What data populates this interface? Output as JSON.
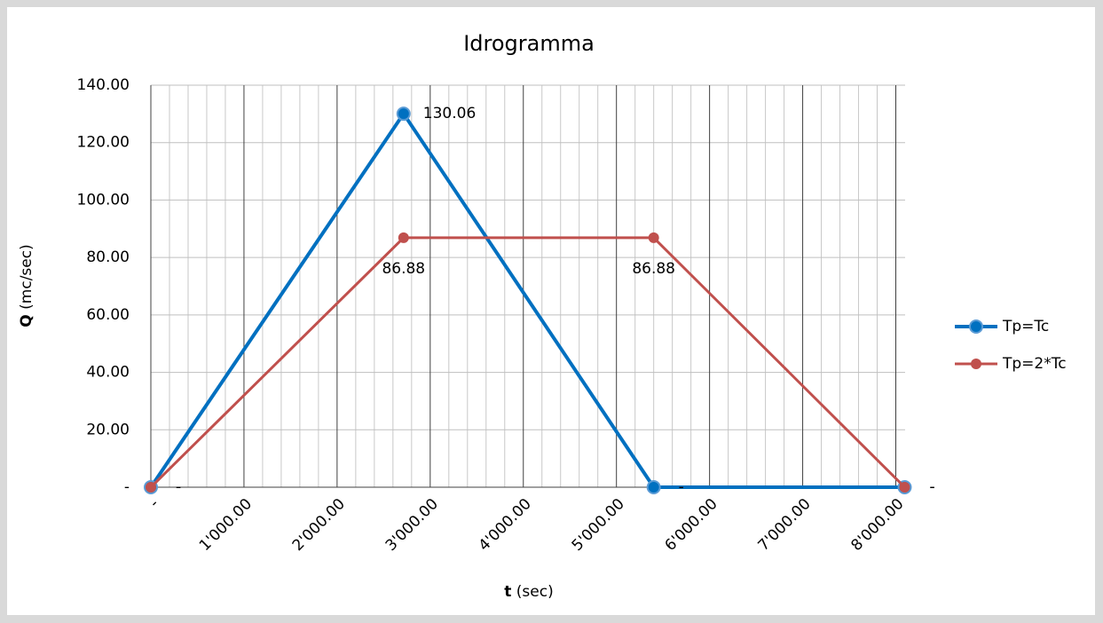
{
  "chart_data": {
    "type": "line",
    "title": "Idrogramma",
    "x_label": {
      "symbol": "t",
      "unit": "(sec)"
    },
    "y_label": {
      "symbol": "Q",
      "unit": "(mc/sec)"
    },
    "x": [
      0,
      2714,
      5400,
      8095
    ],
    "series": [
      {
        "name": "Tp=Tc",
        "color": "#0070c0",
        "values": [
          0,
          130.06,
          0,
          0
        ],
        "value_labels": [
          "-",
          "130.06",
          "-",
          "-"
        ]
      },
      {
        "name": "Tp=2*Tc",
        "color": "#c0504d",
        "values": [
          0,
          86.88,
          86.88,
          0
        ],
        "value_labels": [
          "-",
          "86.88",
          "86.88",
          "-"
        ]
      }
    ],
    "xlim": [
      0,
      8100
    ],
    "xticks": [
      {
        "value": 0,
        "label": "-"
      },
      {
        "value": 1000,
        "label": "1'000.00"
      },
      {
        "value": 2000,
        "label": "2'000.00"
      },
      {
        "value": 3000,
        "label": "3'000.00"
      },
      {
        "value": 4000,
        "label": "4'000.00"
      },
      {
        "value": 5000,
        "label": "5'000.00"
      },
      {
        "value": 6000,
        "label": "6'000.00"
      },
      {
        "value": 7000,
        "label": "7'000.00"
      },
      {
        "value": 8000,
        "label": "8'000.00"
      }
    ],
    "ylim": [
      0,
      140
    ],
    "yticks": [
      {
        "value": 0,
        "label": "-"
      },
      {
        "value": 20,
        "label": "20.00"
      },
      {
        "value": 40,
        "label": "40.00"
      },
      {
        "value": 60,
        "label": "60.00"
      },
      {
        "value": 80,
        "label": "80.00"
      },
      {
        "value": 100,
        "label": "100.00"
      },
      {
        "value": 120,
        "label": "120.00"
      },
      {
        "value": 140,
        "label": "140.00"
      }
    ],
    "grid": true,
    "legend": "right"
  }
}
